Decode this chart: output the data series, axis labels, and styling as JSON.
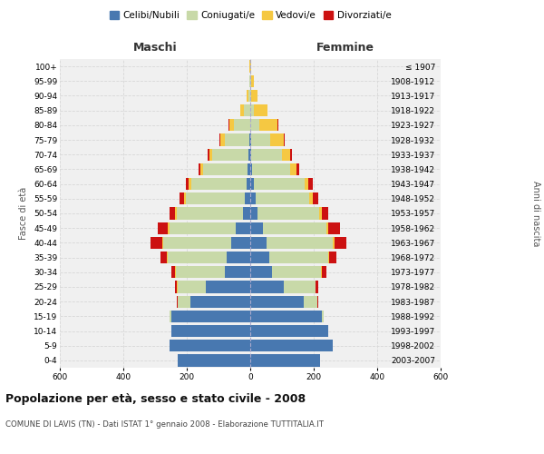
{
  "age_groups": [
    "0-4",
    "5-9",
    "10-14",
    "15-19",
    "20-24",
    "25-29",
    "30-34",
    "35-39",
    "40-44",
    "45-49",
    "50-54",
    "55-59",
    "60-64",
    "65-69",
    "70-74",
    "75-79",
    "80-84",
    "85-89",
    "90-94",
    "95-99",
    "100+"
  ],
  "birth_years": [
    "2003-2007",
    "1998-2002",
    "1993-1997",
    "1988-1992",
    "1983-1987",
    "1978-1982",
    "1973-1977",
    "1968-1972",
    "1963-1967",
    "1958-1962",
    "1953-1957",
    "1948-1952",
    "1943-1947",
    "1938-1942",
    "1933-1937",
    "1928-1932",
    "1923-1927",
    "1918-1922",
    "1913-1917",
    "1908-1912",
    "≤ 1907"
  ],
  "maschi": {
    "celibi": [
      230,
      255,
      250,
      250,
      190,
      140,
      80,
      75,
      60,
      45,
      22,
      18,
      12,
      8,
      5,
      3,
      1,
      1,
      0,
      0,
      0
    ],
    "coniugati": [
      0,
      0,
      0,
      5,
      40,
      90,
      155,
      185,
      215,
      210,
      210,
      185,
      175,
      140,
      115,
      78,
      50,
      18,
      7,
      2,
      1
    ],
    "vedovi": [
      0,
      0,
      0,
      0,
      0,
      1,
      2,
      2,
      3,
      4,
      5,
      6,
      6,
      8,
      10,
      14,
      16,
      12,
      5,
      2,
      1
    ],
    "divorziati": [
      0,
      0,
      0,
      0,
      2,
      6,
      12,
      20,
      35,
      32,
      18,
      14,
      9,
      6,
      3,
      2,
      1,
      1,
      0,
      0,
      0
    ]
  },
  "femmine": {
    "nubili": [
      220,
      260,
      245,
      225,
      168,
      105,
      68,
      60,
      50,
      40,
      22,
      16,
      10,
      7,
      4,
      2,
      1,
      1,
      0,
      0,
      0
    ],
    "coniugate": [
      0,
      0,
      0,
      5,
      42,
      100,
      155,
      185,
      210,
      200,
      195,
      170,
      160,
      120,
      95,
      60,
      28,
      10,
      4,
      2,
      0
    ],
    "vedove": [
      0,
      0,
      0,
      0,
      1,
      2,
      3,
      4,
      5,
      6,
      8,
      12,
      14,
      20,
      28,
      45,
      58,
      42,
      18,
      8,
      3
    ],
    "divorziate": [
      0,
      0,
      0,
      1,
      4,
      8,
      15,
      22,
      38,
      36,
      20,
      16,
      12,
      6,
      3,
      2,
      1,
      1,
      0,
      0,
      0
    ]
  },
  "colors": {
    "celibi": "#4878b0",
    "coniugati": "#c8d9a8",
    "vedovi": "#f5c842",
    "divorziati": "#cc1111"
  },
  "title": "Popolazione per età, sesso e stato civile - 2008",
  "subtitle": "COMUNE DI LAVIS (TN) - Dati ISTAT 1° gennaio 2008 - Elaborazione TUTTITALIA.IT",
  "xlabel_left": "Maschi",
  "xlabel_right": "Femmine",
  "ylabel_left": "Fasce di età",
  "ylabel_right": "Anni di nascita",
  "xlim": 600,
  "background_color": "#ffffff",
  "plot_bg": "#f0f0f0",
  "grid_color": "#d8d8d8",
  "legend_labels": [
    "Celibi/Nubili",
    "Coniugati/e",
    "Vedovi/e",
    "Divorziati/e"
  ]
}
